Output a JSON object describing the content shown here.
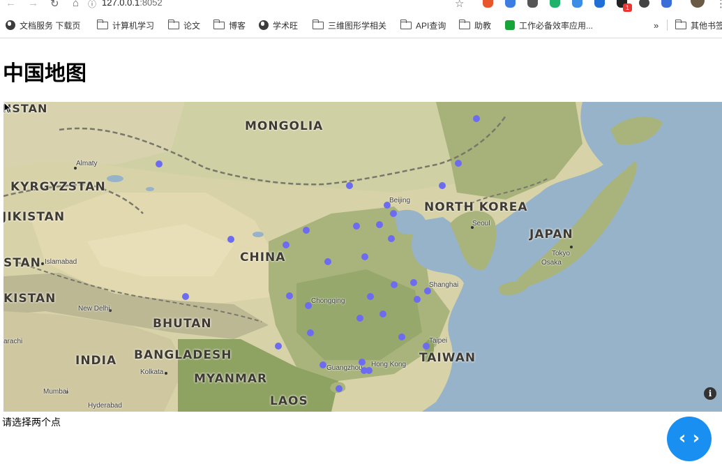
{
  "browser": {
    "url_host": "127.0.0.1",
    "url_port": ":8052",
    "extension_badge": "1",
    "bookmarks": [
      {
        "label": "文档服务 下载页",
        "icon": "globe-icon"
      },
      {
        "label": "计算机学习",
        "icon": "folder-icon"
      },
      {
        "label": "论文",
        "icon": "folder-icon"
      },
      {
        "label": "博客",
        "icon": "folder-icon"
      },
      {
        "label": "学术旺",
        "icon": "globe-icon"
      },
      {
        "label": "三维图形学相关",
        "icon": "folder-icon"
      },
      {
        "label": "API查询",
        "icon": "folder-icon"
      },
      {
        "label": "助教",
        "icon": "folder-icon"
      },
      {
        "label": "工作必备效率应用...",
        "icon": "evernote-icon"
      }
    ],
    "overflow_chevron": "»",
    "other_bookmarks": "其他书签"
  },
  "page": {
    "title": "中国地图",
    "status": "请选择两个点"
  },
  "map": {
    "labels": {
      "mongolia": "MONGOLIA",
      "kyrgyzstan": "KYRGYZSTAN",
      "tajikistan": "JIKISTAN",
      "pakistan_stan": "STAN",
      "pakistan": "KISTAN",
      "china": "CHINA",
      "north_korea": "NORTH KOREA",
      "japan": "JAPAN",
      "bhutan": "BHUTAN",
      "bangladesh": "BANGLADESH",
      "india": "INDIA",
      "myanmar": "MYANMAR",
      "taiwan": "TAIWAN",
      "laos": "LAOS",
      "top_left_stan": "HSTAN"
    },
    "cities": {
      "almaty": "Almaty",
      "beijing": "Beijing",
      "seoul": "Seoul",
      "tokyo": "Tokyo",
      "osaka": "Osaka",
      "islamabad": "Islamabad",
      "new_delhi": "New Delhi",
      "chongqing": "Chongqing",
      "shanghai": "Shanghai",
      "taipei": "Taipei",
      "guangzhou": "Guangzhou",
      "hong_kong": "Hong Kong",
      "kolkata": "Kolkata",
      "mumbai": "Mumbai",
      "hyderabad": "Hyderabad",
      "karachi": "arachi"
    },
    "marker_color": "#6d6cf0",
    "info_icon": "i"
  },
  "code_button": {
    "label": "‹ ›",
    "icon": "code-icon",
    "color": "#1a8ff2"
  }
}
